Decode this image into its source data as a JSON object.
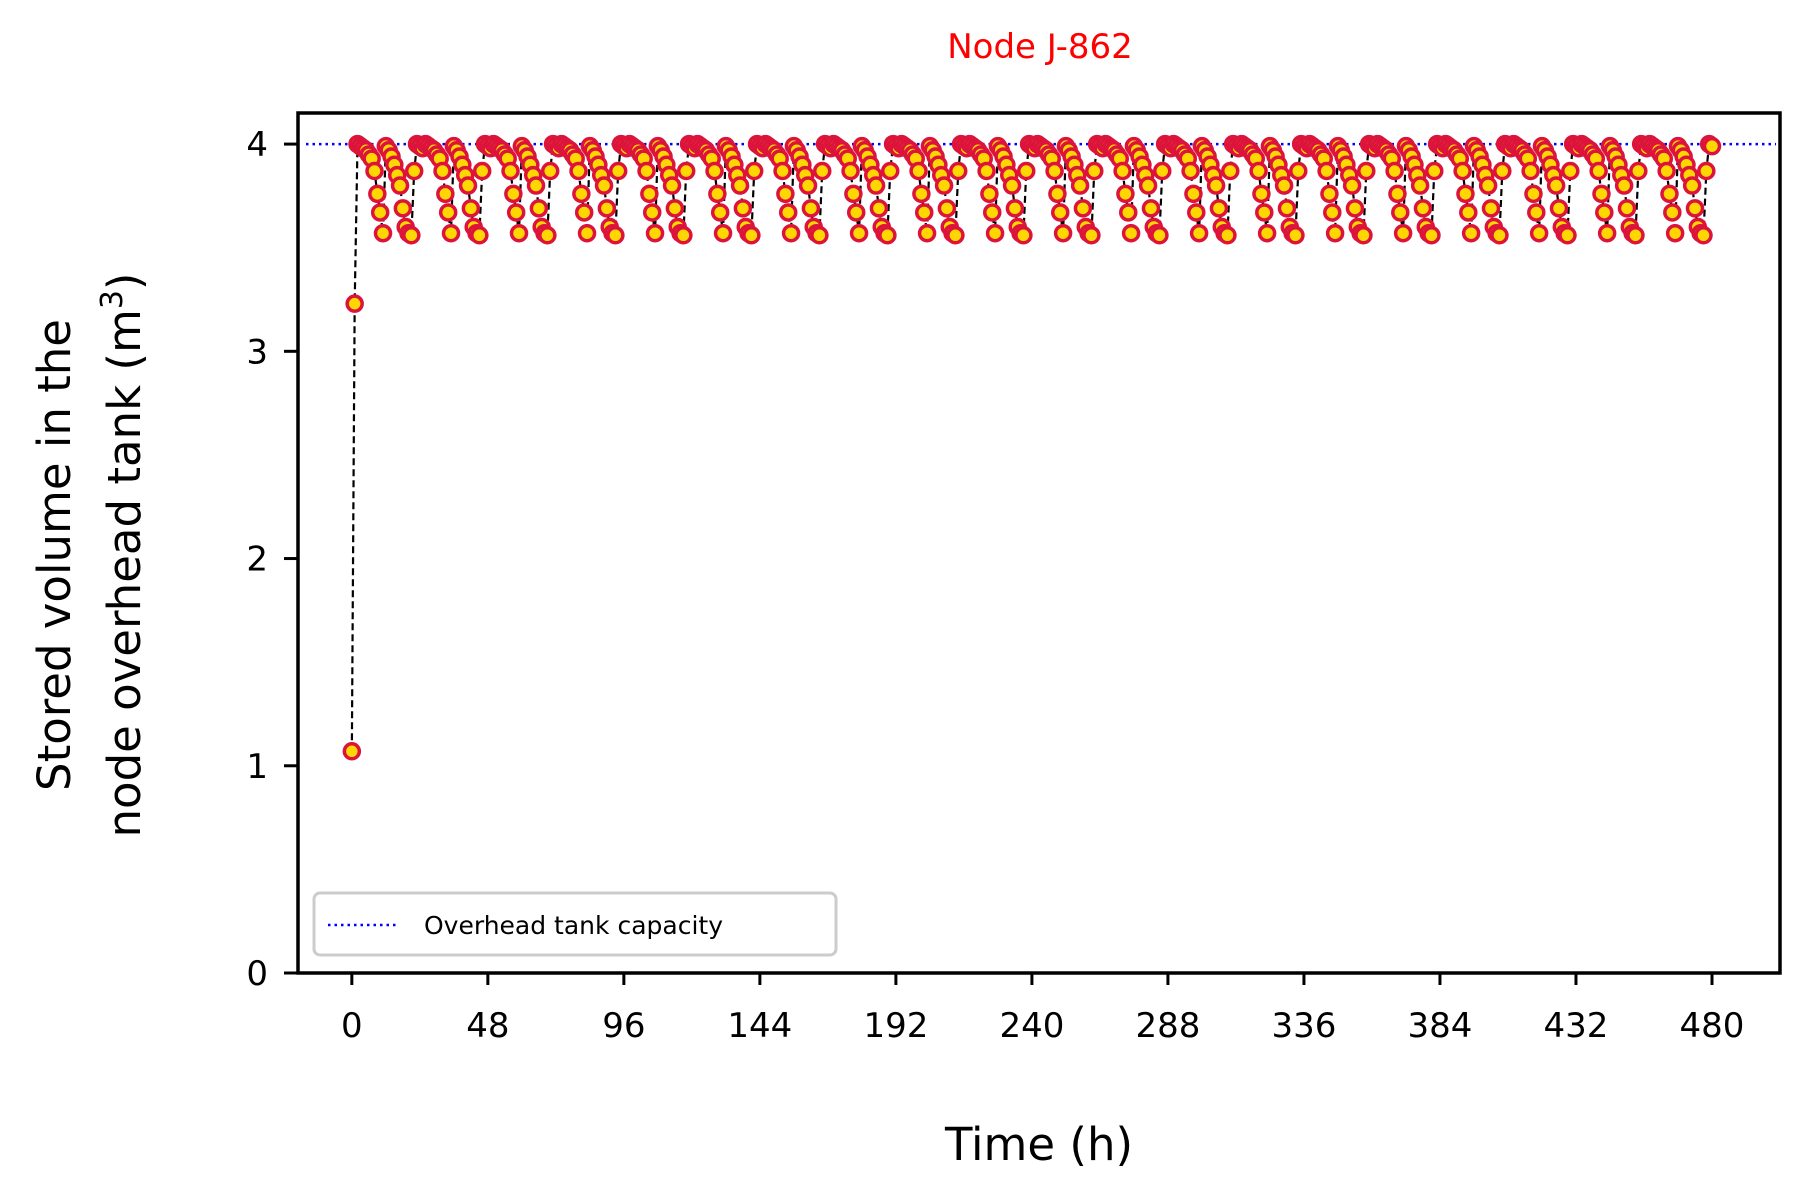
{
  "chart_data": {
    "type": "line",
    "title": "Node J-862",
    "title_color": "#ff0000",
    "xlabel": "Time (h)",
    "ylabel_line1": "Stored volume in the",
    "ylabel_line2_prefix": "node overhead tank (m",
    "ylabel_superscript": "3",
    "ylabel_line2_suffix": ")",
    "xlim": [
      -19,
      504
    ],
    "ylim": [
      0,
      4.15
    ],
    "x_ticks": [
      0,
      48,
      96,
      144,
      192,
      240,
      288,
      336,
      384,
      432,
      480
    ],
    "x_tick_labels": [
      "0",
      "48",
      "96",
      "144",
      "192",
      "240",
      "288",
      "336",
      "384",
      "432",
      "480"
    ],
    "y_ticks": [
      0,
      1,
      2,
      3,
      4
    ],
    "y_tick_labels": [
      "0",
      "1",
      "2",
      "3",
      "4"
    ],
    "grid": false,
    "legend": {
      "placement": "lower-left",
      "entries": [
        {
          "label": "Overhead tank capacity",
          "color": "#0000ff",
          "style": "dotted"
        }
      ]
    },
    "series": [
      {
        "name": "",
        "line_color": "#000000",
        "line_style": "dashed",
        "marker_face": "#ffd700",
        "marker_edge": "#dc143c",
        "initial_points": [
          [
            0,
            1.07
          ],
          [
            1,
            3.23
          ]
        ],
        "cycle": {
          "start": 2,
          "period": 24,
          "end": 480,
          "profile": [
            [
              0,
              4.0
            ],
            [
              1,
              3.99
            ],
            [
              2,
              3.98
            ],
            [
              3,
              3.97
            ],
            [
              4,
              3.95
            ],
            [
              5,
              3.93
            ],
            [
              6,
              3.87
            ],
            [
              7,
              3.76
            ],
            [
              8,
              3.67
            ],
            [
              9,
              3.57
            ],
            [
              10,
              3.99
            ],
            [
              11,
              3.97
            ],
            [
              12,
              3.94
            ],
            [
              13,
              3.9
            ],
            [
              14,
              3.85
            ],
            [
              15,
              3.8
            ],
            [
              16,
              3.69
            ],
            [
              17,
              3.6
            ],
            [
              18,
              3.57
            ],
            [
              19,
              3.56
            ],
            [
              20,
              3.87
            ],
            [
              21,
              4.0
            ],
            [
              22,
              3.99
            ],
            [
              23,
              3.98
            ]
          ]
        }
      }
    ],
    "reference_lines": [
      {
        "axis": "y",
        "value": 4.0,
        "label": "Overhead tank capacity",
        "color": "#0000ff",
        "style": "dotted"
      }
    ]
  }
}
